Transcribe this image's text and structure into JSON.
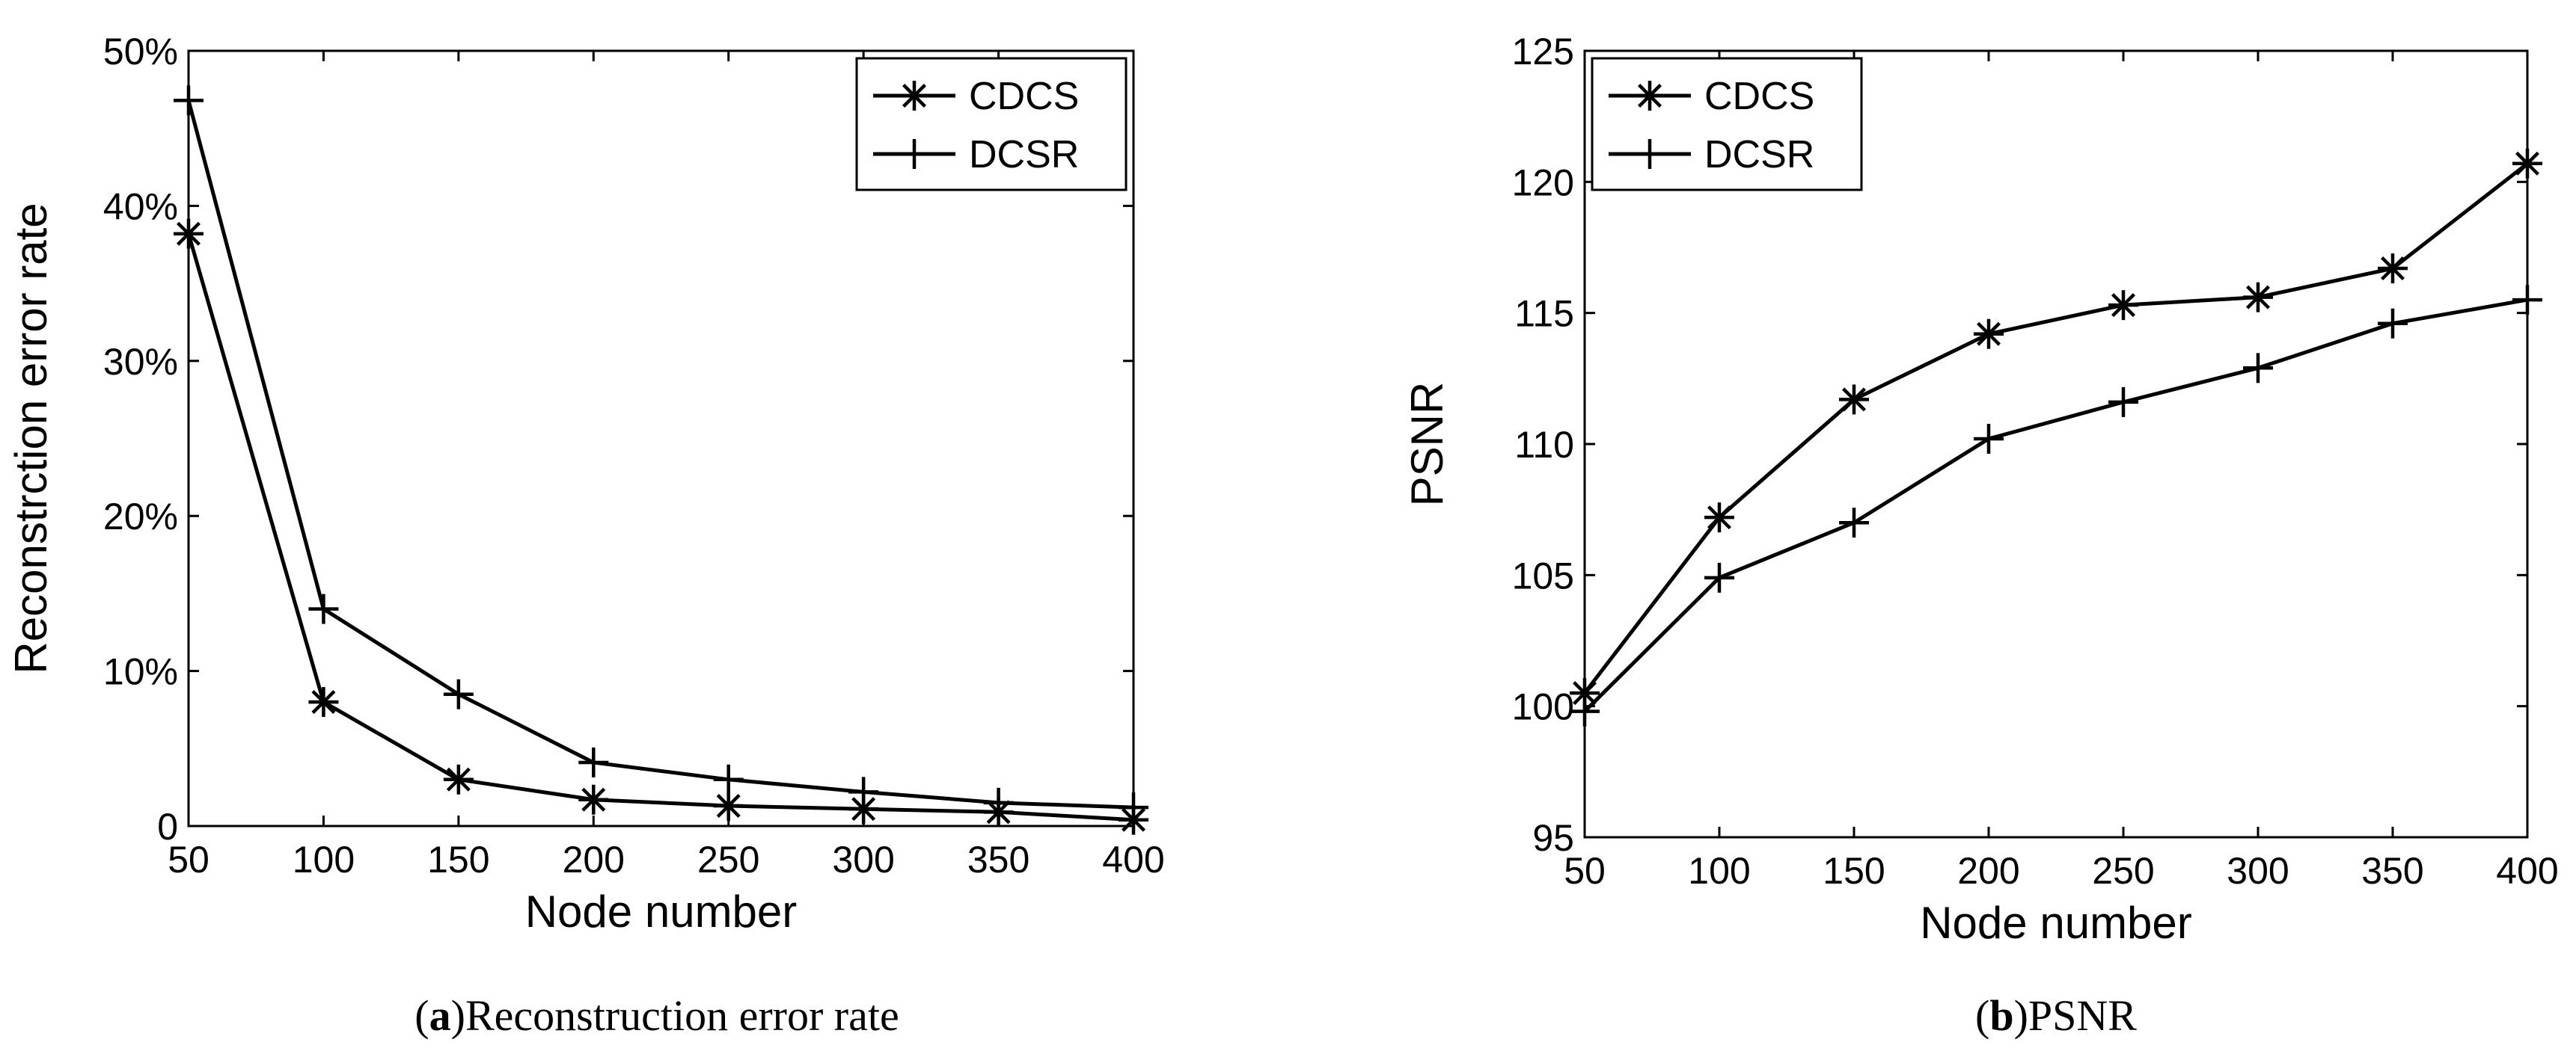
{
  "chart_data": [
    {
      "type": "line",
      "id": "a",
      "caption": {
        "prefix": "(",
        "letter": "a",
        "suffix": ")",
        "text": "Reconstruction error rate"
      },
      "xlabel": "Node number",
      "ylabel": "Reconstrction error rate",
      "x": [
        50,
        100,
        150,
        200,
        250,
        300,
        350,
        400
      ],
      "xlim": [
        50,
        400
      ],
      "ylim": [
        0,
        50
      ],
      "xticks": [
        50,
        100,
        150,
        200,
        250,
        300,
        350,
        400
      ],
      "xtick_labels": [
        "50",
        "100",
        "150",
        "200",
        "250",
        "300",
        "350",
        "400"
      ],
      "yticks": [
        0,
        10,
        20,
        30,
        40,
        50
      ],
      "ytick_labels": [
        "0",
        "10%",
        "20%",
        "30%",
        "40%",
        "50%"
      ],
      "grid": false,
      "legend_position": "top-right",
      "series": [
        {
          "name": "CDCS",
          "marker": "asterisk",
          "values": [
            38.2,
            8.0,
            3.0,
            1.7,
            1.3,
            1.1,
            0.9,
            0.4
          ]
        },
        {
          "name": "DCSR",
          "marker": "plus",
          "values": [
            46.8,
            14.0,
            8.5,
            4.1,
            3.0,
            2.2,
            1.5,
            1.2
          ]
        }
      ]
    },
    {
      "type": "line",
      "id": "b",
      "caption": {
        "prefix": "(",
        "letter": "b",
        "suffix": ")",
        "text": "PSNR"
      },
      "xlabel": "Node number",
      "ylabel": "PSNR",
      "x": [
        50,
        100,
        150,
        200,
        250,
        300,
        350,
        400
      ],
      "xlim": [
        50,
        400
      ],
      "ylim": [
        95,
        125
      ],
      "xticks": [
        50,
        100,
        150,
        200,
        250,
        300,
        350,
        400
      ],
      "xtick_labels": [
        "50",
        "100",
        "150",
        "200",
        "250",
        "300",
        "350",
        "400"
      ],
      "yticks": [
        95,
        100,
        105,
        110,
        115,
        120,
        125
      ],
      "ytick_labels": [
        "95",
        "100",
        "105",
        "110",
        "115",
        "120",
        "125"
      ],
      "grid": false,
      "legend_position": "top-left",
      "series": [
        {
          "name": "CDCS",
          "marker": "asterisk",
          "values": [
            100.5,
            107.2,
            111.7,
            114.2,
            115.3,
            115.6,
            116.7,
            120.7
          ]
        },
        {
          "name": "DCSR",
          "marker": "plus",
          "values": [
            99.8,
            104.9,
            107.0,
            110.2,
            111.6,
            112.9,
            114.6,
            115.5
          ]
        }
      ]
    }
  ]
}
